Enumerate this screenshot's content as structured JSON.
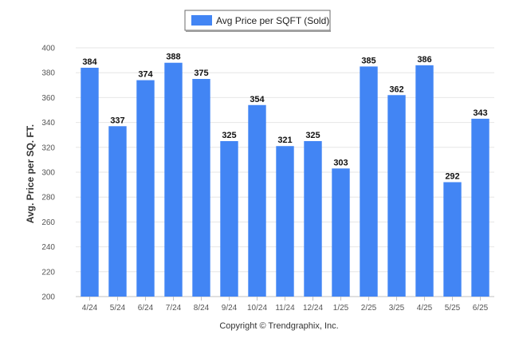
{
  "chart_data": {
    "type": "bar",
    "categories": [
      "4/24",
      "5/24",
      "6/24",
      "7/24",
      "8/24",
      "9/24",
      "10/24",
      "11/24",
      "12/24",
      "1/25",
      "2/25",
      "3/25",
      "4/25",
      "5/25",
      "6/25"
    ],
    "series": [
      {
        "name": "Avg Price per SQFT (Sold)",
        "values": [
          384,
          337,
          374,
          388,
          375,
          325,
          354,
          321,
          325,
          303,
          385,
          362,
          386,
          292,
          343
        ],
        "color": "#4285f4"
      }
    ],
    "ylabel": "Avg. Price per SQ. FT.",
    "xlabel": "",
    "ylim": [
      200,
      400
    ],
    "yticks": [
      200,
      220,
      240,
      260,
      280,
      300,
      320,
      340,
      360,
      380,
      400
    ],
    "grid": true,
    "legend_position": "top-center",
    "data_labels": true
  },
  "footer": {
    "copyright": "Copyright © Trendgraphix, Inc."
  },
  "colors": {
    "bar": "#4285f4",
    "grid": "#e6e6e6",
    "axis": "#c0c0c0"
  }
}
